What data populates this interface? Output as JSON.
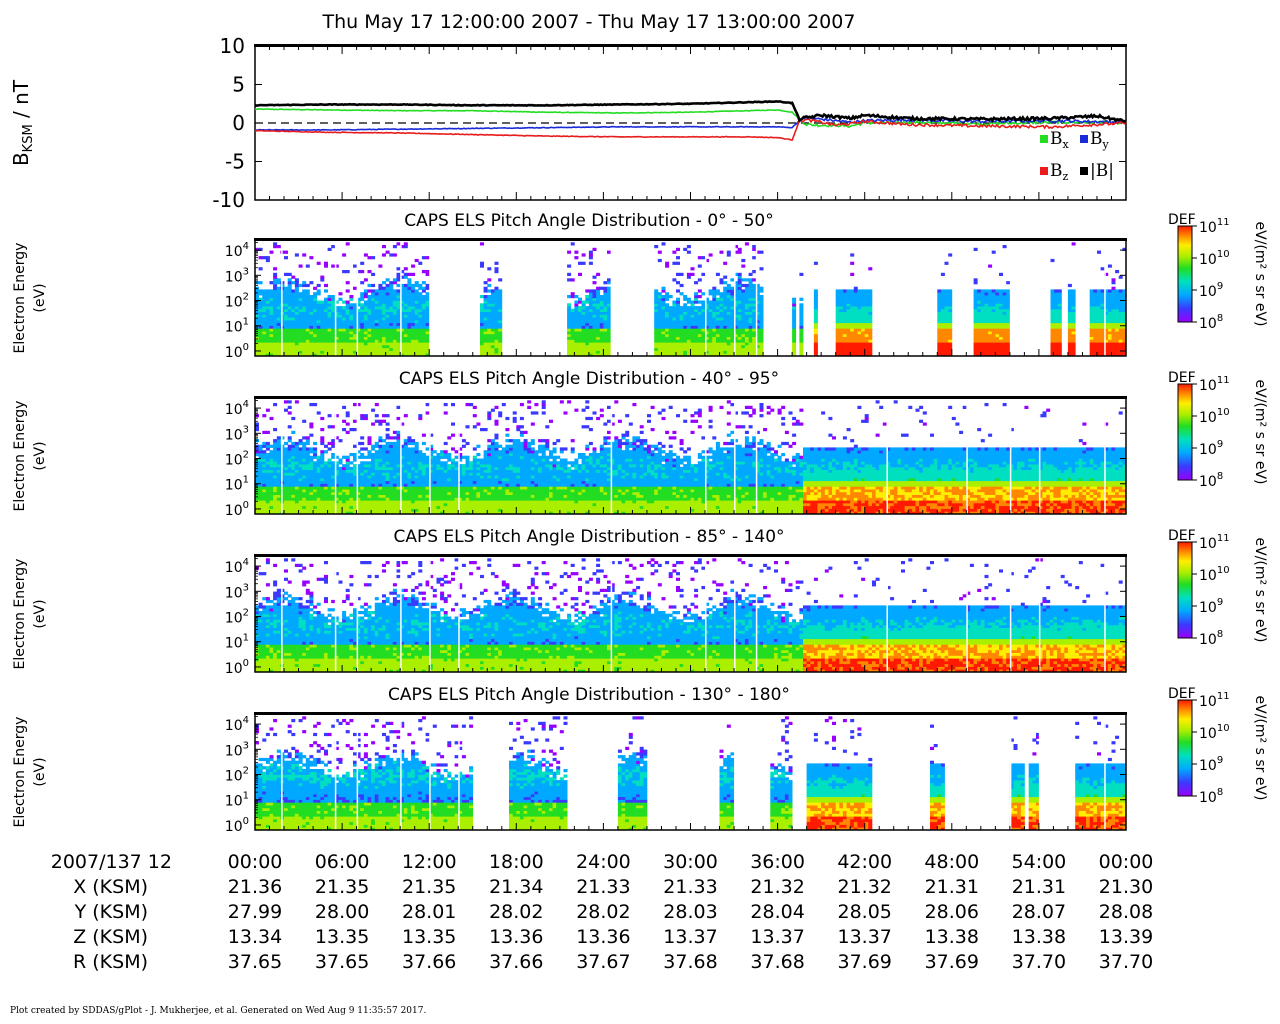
{
  "title": "Thu May 17 12:00:00 2007 - Thu May 17 13:00:00 2007",
  "footer": "Plot created by SDDAS/gPlot - J. Mukherjee, et al.  Generated on Wed Aug 9 11:35:57 2017.",
  "colors": {
    "bx": "#22dd22",
    "by": "#1a2ad9",
    "bz": "#e81c1c",
    "bmag": "#000000",
    "colormap": [
      "#9900ff",
      "#3a3aff",
      "#00a8ff",
      "#00e0c0",
      "#22dd22",
      "#aaee00",
      "#ffee00",
      "#ff8800",
      "#ff1a00"
    ]
  },
  "chart_data": [
    {
      "type": "line",
      "ylabel_main": "B",
      "ylabel_sub": "KSM",
      "ylabel_unit": " / nT",
      "ylim": [
        -10,
        10
      ],
      "yticks": [
        10,
        5,
        0,
        -5,
        -10
      ],
      "xlim": [
        0,
        60
      ],
      "zero_line": "dashed",
      "legend_position": "bottom-right",
      "series": [
        {
          "name": "Bx",
          "base": "B",
          "sub": "x",
          "color": "#22dd22",
          "x": [
            0,
            5,
            10,
            15,
            20,
            25,
            30,
            32,
            34,
            36,
            37,
            37.5,
            38,
            39,
            40,
            41,
            42,
            45,
            50,
            55,
            60
          ],
          "y": [
            1.8,
            1.7,
            1.6,
            1.6,
            1.4,
            1.3,
            1.4,
            1.5,
            1.6,
            1.7,
            1.4,
            0.5,
            -0.2,
            -0.3,
            -0.3,
            -0.4,
            0.0,
            0.1,
            -0.1,
            0.1,
            0.1
          ]
        },
        {
          "name": "By",
          "base": "B",
          "sub": "y",
          "color": "#1a2ad9",
          "x": [
            0,
            5,
            10,
            15,
            20,
            25,
            30,
            32,
            34,
            36,
            37,
            37.5,
            38,
            39,
            40,
            41,
            42,
            45,
            50,
            55,
            60
          ],
          "y": [
            -0.9,
            -0.9,
            -0.8,
            -0.7,
            -0.6,
            -0.5,
            -0.5,
            -0.5,
            -0.5,
            -0.5,
            -0.6,
            0.3,
            0.6,
            0.5,
            0.3,
            0.1,
            0.3,
            0.4,
            0.2,
            0.3,
            0.1
          ]
        },
        {
          "name": "Bz",
          "base": "B",
          "sub": "z",
          "color": "#e81c1c",
          "x": [
            0,
            5,
            10,
            15,
            20,
            25,
            30,
            32,
            34,
            36,
            37,
            37.5,
            38,
            39,
            40,
            41,
            42,
            45,
            50,
            55,
            58,
            60
          ],
          "y": [
            -1.0,
            -1.2,
            -1.3,
            -1.5,
            -1.7,
            -1.8,
            -1.8,
            -1.8,
            -1.8,
            -1.9,
            -2.2,
            0.3,
            0.4,
            0.1,
            -0.3,
            -0.1,
            0.2,
            -0.2,
            -0.4,
            -0.5,
            -0.2,
            0.0
          ]
        },
        {
          "name": "|B|",
          "base": "|B|",
          "sub": "",
          "color": "#000000",
          "x": [
            0,
            5,
            10,
            15,
            20,
            25,
            30,
            32,
            34,
            36,
            37,
            37.5,
            38,
            39,
            40,
            41,
            42,
            45,
            50,
            55,
            58,
            60
          ],
          "y": [
            2.3,
            2.4,
            2.4,
            2.3,
            2.3,
            2.4,
            2.5,
            2.6,
            2.7,
            2.8,
            2.6,
            0.5,
            0.7,
            1.0,
            0.8,
            0.6,
            1.0,
            0.6,
            0.5,
            0.6,
            0.9,
            0.2
          ]
        }
      ]
    },
    {
      "type": "heatmap",
      "title": "CAPS ELS Pitch Angle Distribution - 0° - 50°",
      "ylabel": "Electron Energy",
      "yunit": "(eV)",
      "yscale": "log",
      "ylim_exp": [
        -0.2,
        4.4
      ],
      "ytick_exps": [
        0,
        1,
        2,
        3,
        4
      ],
      "xlim": [
        0,
        60
      ],
      "coverage": [
        [
          0,
          12
        ],
        [
          15.5,
          17
        ],
        [
          21.5,
          24.5
        ],
        [
          27.5,
          35
        ],
        [
          37,
          37.2
        ],
        [
          37.5,
          37.7
        ],
        [
          38.5,
          38.7
        ],
        [
          40,
          42.3
        ],
        [
          47,
          48
        ],
        [
          49.5,
          52
        ],
        [
          54.8,
          55.5
        ],
        [
          56,
          56.5
        ],
        [
          57.5,
          60
        ]
      ],
      "colorbar": {
        "label": "DEF",
        "unit": "eV/(m² s sr eV)",
        "tick_exps": [
          8,
          9,
          10,
          11
        ]
      }
    },
    {
      "type": "heatmap",
      "title": "CAPS ELS Pitch Angle Distribution - 40° - 95°",
      "ylabel": "Electron Energy",
      "yunit": "(eV)",
      "yscale": "log",
      "ylim_exp": [
        -0.2,
        4.4
      ],
      "ytick_exps": [
        0,
        1,
        2,
        3,
        4
      ],
      "xlim": [
        0,
        60
      ],
      "coverage": [
        [
          0,
          60
        ]
      ],
      "colorbar": {
        "label": "DEF",
        "unit": "eV/(m² s sr eV)",
        "tick_exps": [
          8,
          9,
          10,
          11
        ]
      }
    },
    {
      "type": "heatmap",
      "title": "CAPS ELS Pitch Angle Distribution - 85° - 140°",
      "ylabel": "Electron Energy",
      "yunit": "(eV)",
      "yscale": "log",
      "ylim_exp": [
        -0.2,
        4.4
      ],
      "ytick_exps": [
        0,
        1,
        2,
        3,
        4
      ],
      "xlim": [
        0,
        60
      ],
      "coverage": [
        [
          0,
          60
        ]
      ],
      "colorbar": {
        "label": "DEF",
        "unit": "eV/(m² s sr eV)",
        "tick_exps": [
          8,
          9,
          10,
          11
        ]
      }
    },
    {
      "type": "heatmap",
      "title": "CAPS ELS Pitch Angle Distribution - 130° - 180°",
      "ylabel": "Electron Energy",
      "yunit": "(eV)",
      "yscale": "log",
      "ylim_exp": [
        -0.2,
        4.4
      ],
      "ytick_exps": [
        0,
        1,
        2,
        3,
        4
      ],
      "xlim": [
        0,
        60
      ],
      "coverage": [
        [
          0,
          15
        ],
        [
          17.5,
          21.5
        ],
        [
          25,
          27
        ],
        [
          32,
          33
        ],
        [
          35.5,
          37
        ],
        [
          38,
          42.3
        ],
        [
          46.5,
          47.3
        ],
        [
          52,
          52.8
        ],
        [
          53.3,
          54
        ],
        [
          56.5,
          60
        ]
      ],
      "colorbar": {
        "label": "DEF",
        "unit": "eV/(m² s sr eV)",
        "tick_exps": [
          8,
          9,
          10,
          11
        ]
      }
    }
  ],
  "axis_table": {
    "date_label": "2007/137 12",
    "times": [
      "00:00",
      "06:00",
      "12:00",
      "18:00",
      "24:00",
      "30:00",
      "36:00",
      "42:00",
      "48:00",
      "54:00",
      "00:00"
    ],
    "rows": [
      {
        "label": "X (KSM)",
        "values": [
          "21.36",
          "21.35",
          "21.35",
          "21.34",
          "21.33",
          "21.33",
          "21.32",
          "21.32",
          "21.31",
          "21.31",
          "21.30"
        ]
      },
      {
        "label": "Y (KSM)",
        "values": [
          "27.99",
          "28.00",
          "28.01",
          "28.02",
          "28.02",
          "28.03",
          "28.04",
          "28.05",
          "28.06",
          "28.07",
          "28.08"
        ]
      },
      {
        "label": "Z (KSM)",
        "values": [
          "13.34",
          "13.35",
          "13.35",
          "13.36",
          "13.36",
          "13.37",
          "13.37",
          "13.37",
          "13.38",
          "13.38",
          "13.39"
        ]
      },
      {
        "label": "R (KSM)",
        "values": [
          "37.65",
          "37.65",
          "37.66",
          "37.66",
          "37.67",
          "37.68",
          "37.68",
          "37.69",
          "37.69",
          "37.70",
          "37.70"
        ]
      }
    ]
  }
}
